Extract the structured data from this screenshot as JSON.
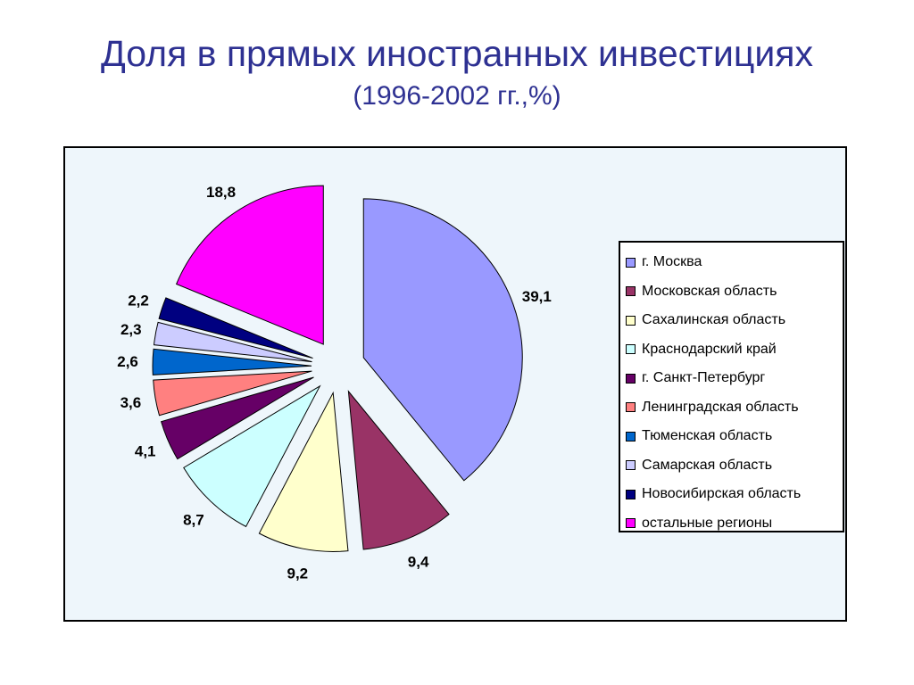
{
  "slide": {
    "title": "Доля в прямых иностранных инвестициях",
    "subtitle": "(1996-2002 гг.,%)"
  },
  "chart_data": {
    "type": "pie",
    "title": "Доля в прямых иностранных инвестициях",
    "subtitle": "(1996-2002 гг.,%)",
    "exploded": true,
    "legend_position": "right",
    "slices": [
      {
        "label": "г. Москва",
        "value": 39.1,
        "value_label": "39,1",
        "color": "#9999FF"
      },
      {
        "label": "Московская область",
        "value": 9.4,
        "value_label": "9,4",
        "color": "#993366"
      },
      {
        "label": "Сахалинская область",
        "value": 9.2,
        "value_label": "9,2",
        "color": "#FFFFCC"
      },
      {
        "label": "Краснодарский край",
        "value": 8.7,
        "value_label": "8,7",
        "color": "#CCFFFF"
      },
      {
        "label": "г. Санкт-Петербург",
        "value": 4.1,
        "value_label": "4,1",
        "color": "#660066"
      },
      {
        "label": "Ленинградская область",
        "value": 3.6,
        "value_label": "3,6",
        "color": "#FF8080"
      },
      {
        "label": "Тюменская область",
        "value": 2.6,
        "value_label": "2,6",
        "color": "#0066CC"
      },
      {
        "label": "Самарская область",
        "value": 2.3,
        "value_label": "2,3",
        "color": "#CCCCFF"
      },
      {
        "label": "Новосибирская область",
        "value": 2.2,
        "value_label": "2,2",
        "color": "#000080"
      },
      {
        "label": "остальные регионы",
        "value": 18.8,
        "value_label": "18,8",
        "color": "#FF00FF"
      }
    ]
  }
}
